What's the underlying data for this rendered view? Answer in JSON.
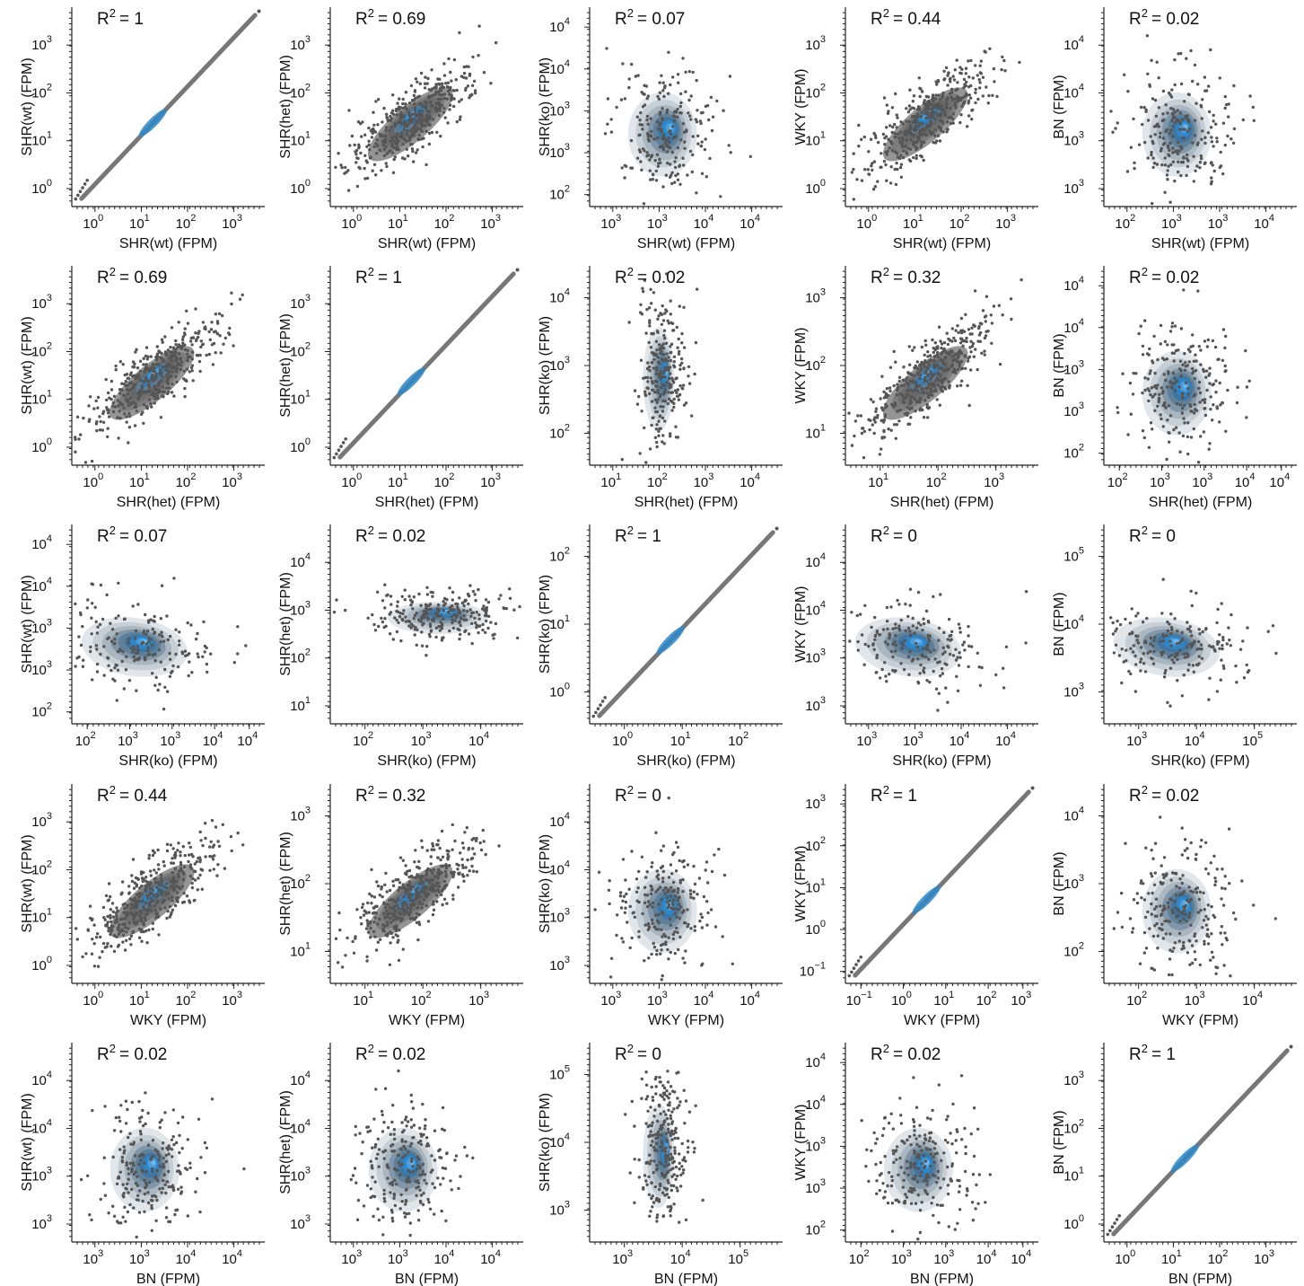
{
  "chart_data": {
    "type": "scatter",
    "layout": "pairplot-5x5",
    "x_scale": "log",
    "y_scale": "log",
    "grid": false,
    "legend": "none",
    "colors": {
      "points": "#555555",
      "density_low": "#dde3e8",
      "density_mid": "#5d7e98",
      "density_high": "#2f87c8",
      "density_peak": "#6fb6ef",
      "axis": "#222222"
    },
    "variables": [
      "SHR(wt) (FPM)",
      "SHR(het) (FPM)",
      "SHR(ko) (FPM)",
      "WKY (FPM)",
      "BN (FPM)"
    ],
    "panels": [
      {
        "row": 0,
        "col": 0,
        "r2_label": "R",
        "r2_value": "= 1",
        "xlabel": "SHR(wt) (FPM)",
        "ylabel": "SHR(wt) (FPM)",
        "xticks": [
          "10",
          "10",
          "10",
          "10"
        ],
        "xexp": [
          "0",
          "1",
          "2",
          "3"
        ],
        "yticks": [
          "10",
          "10",
          "10",
          "10"
        ],
        "yexp": [
          "0",
          "1",
          "2",
          "3"
        ],
        "style": "diag"
      },
      {
        "row": 0,
        "col": 1,
        "r2_label": "R",
        "r2_value": "= 0.69",
        "xlabel": "SHR(wt) (FPM)",
        "ylabel": "SHR(het) (FPM)",
        "xticks": [
          "10",
          "10",
          "10",
          "10"
        ],
        "xexp": [
          "0",
          "1",
          "2",
          "3"
        ],
        "yticks": [
          "10",
          "10",
          "10",
          "10"
        ],
        "yexp": [
          "0",
          "1",
          "2",
          "3"
        ],
        "style": "corr"
      },
      {
        "row": 0,
        "col": 2,
        "r2_label": "R",
        "r2_value": "= 0.07",
        "xlabel": "SHR(wt) (FPM)",
        "ylabel": "SHR(ko) (FPM)",
        "xticks": [
          "10",
          "10",
          "10",
          "10"
        ],
        "xexp": [
          "3",
          "3",
          "4",
          "4"
        ],
        "yticks": [
          "10",
          "10",
          "10",
          "10",
          "10"
        ],
        "yexp": [
          "2",
          "3",
          "3",
          "4",
          "4"
        ],
        "style": "blob"
      },
      {
        "row": 0,
        "col": 3,
        "r2_label": "R",
        "r2_value": "= 0.44",
        "xlabel": "SHR(wt) (FPM)",
        "ylabel": "WKY (FPM)",
        "xticks": [
          "10",
          "10",
          "10",
          "10"
        ],
        "xexp": [
          "0",
          "1",
          "2",
          "3"
        ],
        "yticks": [
          "10",
          "10",
          "10",
          "10"
        ],
        "yexp": [
          "0",
          "1",
          "2",
          "3"
        ],
        "style": "corr"
      },
      {
        "row": 0,
        "col": 4,
        "r2_label": "R",
        "r2_value": "= 0.02",
        "xlabel": "SHR(wt) (FPM)",
        "ylabel": "BN (FPM)",
        "xticks": [
          "10",
          "10",
          "10",
          "10"
        ],
        "xexp": [
          "2",
          "3",
          "3",
          "4"
        ],
        "yticks": [
          "10",
          "10",
          "10",
          "10"
        ],
        "yexp": [
          "3",
          "3",
          "4",
          "4"
        ],
        "style": "blob"
      },
      {
        "row": 1,
        "col": 0,
        "r2_label": "R",
        "r2_value": "= 0.69",
        "xlabel": "SHR(het) (FPM)",
        "ylabel": "SHR(wt) (FPM)",
        "xticks": [
          "10",
          "10",
          "10",
          "10"
        ],
        "xexp": [
          "0",
          "1",
          "2",
          "3"
        ],
        "yticks": [
          "10",
          "10",
          "10",
          "10"
        ],
        "yexp": [
          "0",
          "1",
          "2",
          "3"
        ],
        "style": "corr"
      },
      {
        "row": 1,
        "col": 1,
        "r2_label": "R",
        "r2_value": "= 1",
        "xlabel": "SHR(het) (FPM)",
        "ylabel": "SHR(het) (FPM)",
        "xticks": [
          "10",
          "10",
          "10",
          "10"
        ],
        "xexp": [
          "0",
          "1",
          "2",
          "3"
        ],
        "yticks": [
          "10",
          "10",
          "10",
          "10"
        ],
        "yexp": [
          "0",
          "1",
          "2",
          "3"
        ],
        "style": "diag"
      },
      {
        "row": 1,
        "col": 2,
        "r2_label": "R",
        "r2_value": "= 0.02",
        "xlabel": "SHR(het) (FPM)",
        "ylabel": "SHR(ko) (FPM)",
        "xticks": [
          "10",
          "10",
          "10",
          "10"
        ],
        "xexp": [
          "1",
          "2",
          "3",
          "4"
        ],
        "yticks": [
          "10",
          "10",
          "10"
        ],
        "yexp": [
          "2",
          "3",
          "4"
        ],
        "style": "vertical"
      },
      {
        "row": 1,
        "col": 3,
        "r2_label": "R",
        "r2_value": "= 0.32",
        "xlabel": "SHR(het) (FPM)",
        "ylabel": "WKY (FPM)",
        "xticks": [
          "10",
          "10",
          "10"
        ],
        "xexp": [
          "1",
          "2",
          "3"
        ],
        "yticks": [
          "10",
          "10",
          "10"
        ],
        "yexp": [
          "1",
          "2",
          "3"
        ],
        "style": "corr"
      },
      {
        "row": 1,
        "col": 4,
        "r2_label": "R",
        "r2_value": "= 0.02",
        "xlabel": "SHR(het) (FPM)",
        "ylabel": "BN (FPM)",
        "xticks": [
          "10",
          "10",
          "10",
          "10",
          "10"
        ],
        "xexp": [
          "2",
          "3",
          "3",
          "4",
          "4"
        ],
        "yticks": [
          "10",
          "10",
          "10",
          "10",
          "10"
        ],
        "yexp": [
          "2",
          "3",
          "3",
          "4",
          "4"
        ],
        "style": "blob"
      },
      {
        "row": 2,
        "col": 0,
        "r2_label": "R",
        "r2_value": "= 0.07",
        "xlabel": "SHR(ko) (FPM)",
        "ylabel": "SHR(wt) (FPM)",
        "xticks": [
          "10",
          "10",
          "10",
          "10",
          "10"
        ],
        "xexp": [
          "2",
          "3",
          "3",
          "4",
          "4"
        ],
        "yticks": [
          "10",
          "10",
          "10",
          "10",
          "10"
        ],
        "yexp": [
          "2",
          "3",
          "3",
          "4",
          "4"
        ],
        "style": "wide"
      },
      {
        "row": 2,
        "col": 1,
        "r2_label": "R",
        "r2_value": "= 0.02",
        "xlabel": "SHR(ko) (FPM)",
        "ylabel": "SHR(het) (FPM)",
        "xticks": [
          "10",
          "10",
          "10"
        ],
        "xexp": [
          "2",
          "3",
          "4"
        ],
        "yticks": [
          "10",
          "10",
          "10",
          "10"
        ],
        "yexp": [
          "1",
          "2",
          "3",
          "4"
        ],
        "style": "horizontal"
      },
      {
        "row": 2,
        "col": 2,
        "r2_label": "R",
        "r2_value": "= 1",
        "xlabel": "SHR(ko) (FPM)",
        "ylabel": "SHR(ko) (FPM)",
        "xticks": [
          "10",
          "10",
          "10"
        ],
        "xexp": [
          "0",
          "1",
          "2"
        ],
        "yticks": [
          "10",
          "10",
          "10"
        ],
        "yexp": [
          "0",
          "1",
          "2"
        ],
        "style": "diag"
      },
      {
        "row": 2,
        "col": 3,
        "r2_label": "R",
        "r2_value": "= 0",
        "xlabel": "SHR(ko) (FPM)",
        "ylabel": "WKY (FPM)",
        "xticks": [
          "10",
          "10",
          "10",
          "10"
        ],
        "xexp": [
          "3",
          "3",
          "4",
          "4"
        ],
        "yticks": [
          "10",
          "10",
          "10",
          "10"
        ],
        "yexp": [
          "3",
          "3",
          "4",
          "4"
        ],
        "style": "wide"
      },
      {
        "row": 2,
        "col": 4,
        "r2_label": "R",
        "r2_value": "= 0",
        "xlabel": "SHR(ko) (FPM)",
        "ylabel": "BN (FPM)",
        "xticks": [
          "10",
          "10",
          "10"
        ],
        "xexp": [
          "3",
          "4",
          "5"
        ],
        "yticks": [
          "10",
          "10",
          "10"
        ],
        "yexp": [
          "3",
          "4",
          "5"
        ],
        "style": "wide"
      },
      {
        "row": 3,
        "col": 0,
        "r2_label": "R",
        "r2_value": "= 0.44",
        "xlabel": "WKY (FPM)",
        "ylabel": "SHR(wt) (FPM)",
        "xticks": [
          "10",
          "10",
          "10",
          "10"
        ],
        "xexp": [
          "0",
          "1",
          "2",
          "3"
        ],
        "yticks": [
          "10",
          "10",
          "10",
          "10"
        ],
        "yexp": [
          "0",
          "1",
          "2",
          "3"
        ],
        "style": "corr"
      },
      {
        "row": 3,
        "col": 1,
        "r2_label": "R",
        "r2_value": "= 0.32",
        "xlabel": "WKY (FPM)",
        "ylabel": "SHR(het) (FPM)",
        "xticks": [
          "10",
          "10",
          "10"
        ],
        "xexp": [
          "1",
          "2",
          "3"
        ],
        "yticks": [
          "10",
          "10",
          "10"
        ],
        "yexp": [
          "1",
          "2",
          "3"
        ],
        "style": "corr"
      },
      {
        "row": 3,
        "col": 2,
        "r2_label": "R",
        "r2_value": "= 0",
        "xlabel": "WKY (FPM)",
        "ylabel": "SHR(ko) (FPM)",
        "xticks": [
          "10",
          "10",
          "10",
          "10"
        ],
        "xexp": [
          "3",
          "3",
          "4",
          "4"
        ],
        "yticks": [
          "10",
          "10",
          "10",
          "10"
        ],
        "yexp": [
          "3",
          "3",
          "4",
          "4"
        ],
        "style": "blob"
      },
      {
        "row": 3,
        "col": 3,
        "r2_label": "R",
        "r2_value": "= 1",
        "xlabel": "WKY (FPM)",
        "ylabel": "WKY (FPM)",
        "xticks": [
          "10",
          "10",
          "10",
          "10",
          "10"
        ],
        "xexp": [
          "−1",
          "0",
          "1",
          "2",
          "3"
        ],
        "yticks": [
          "10",
          "10",
          "10",
          "10",
          "10"
        ],
        "yexp": [
          "−1",
          "0",
          "1",
          "2",
          "3"
        ],
        "style": "diag"
      },
      {
        "row": 3,
        "col": 4,
        "r2_label": "R",
        "r2_value": "= 0.02",
        "xlabel": "WKY (FPM)",
        "ylabel": "BN (FPM)",
        "xticks": [
          "10",
          "10",
          "10"
        ],
        "xexp": [
          "2",
          "3",
          "4"
        ],
        "yticks": [
          "10",
          "10",
          "10"
        ],
        "yexp": [
          "2",
          "3",
          "4"
        ],
        "style": "blob"
      },
      {
        "row": 4,
        "col": 0,
        "r2_label": "R",
        "r2_value": "= 0.02",
        "xlabel": "BN (FPM)",
        "ylabel": "SHR(wt) (FPM)",
        "xticks": [
          "10",
          "10",
          "10",
          "10"
        ],
        "xexp": [
          "3",
          "3",
          "4",
          "4"
        ],
        "yticks": [
          "10",
          "10",
          "10",
          "10"
        ],
        "yexp": [
          "3",
          "3",
          "4",
          "4"
        ],
        "style": "blob"
      },
      {
        "row": 4,
        "col": 1,
        "r2_label": "R",
        "r2_value": "= 0.02",
        "xlabel": "BN (FPM)",
        "ylabel": "SHR(het) (FPM)",
        "xticks": [
          "10",
          "10",
          "10",
          "10"
        ],
        "xexp": [
          "3",
          "3",
          "4",
          "4"
        ],
        "yticks": [
          "10",
          "10",
          "10",
          "10"
        ],
        "yexp": [
          "3",
          "3",
          "4",
          "4"
        ],
        "style": "blob"
      },
      {
        "row": 4,
        "col": 2,
        "r2_label": "R",
        "r2_value": "= 0",
        "xlabel": "BN (FPM)",
        "ylabel": "SHR(ko) (FPM)",
        "xticks": [
          "10",
          "10",
          "10"
        ],
        "xexp": [
          "3",
          "4",
          "5"
        ],
        "yticks": [
          "10",
          "10",
          "10"
        ],
        "yexp": [
          "3",
          "4",
          "5"
        ],
        "style": "vertical"
      },
      {
        "row": 4,
        "col": 3,
        "r2_label": "R",
        "r2_value": "= 0.02",
        "xlabel": "BN (FPM)",
        "ylabel": "WKY (FPM)",
        "xticks": [
          "10",
          "10",
          "10",
          "10",
          "10"
        ],
        "xexp": [
          "2",
          "3",
          "3",
          "4",
          "4"
        ],
        "yticks": [
          "10",
          "10",
          "10",
          "10",
          "10"
        ],
        "yexp": [
          "2",
          "3",
          "3",
          "4",
          "4"
        ],
        "style": "blob"
      },
      {
        "row": 4,
        "col": 4,
        "r2_label": "R",
        "r2_value": "= 1",
        "xlabel": "BN (FPM)",
        "ylabel": "BN (FPM)",
        "xticks": [
          "10",
          "10",
          "10",
          "10"
        ],
        "xexp": [
          "0",
          "1",
          "2",
          "3"
        ],
        "yticks": [
          "10",
          "10",
          "10",
          "10"
        ],
        "yexp": [
          "0",
          "1",
          "2",
          "3"
        ],
        "style": "diag"
      }
    ]
  }
}
